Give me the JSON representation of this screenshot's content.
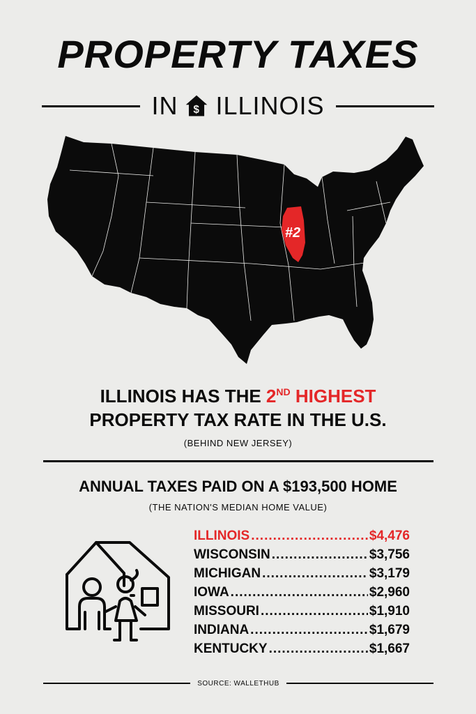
{
  "title": "PROPERTY TAXES",
  "subtitle": {
    "prefix": "IN",
    "icon": "house-dollar-icon",
    "state": "ILLINOIS"
  },
  "map": {
    "highlight_label": "#2",
    "highlight_color": "#e42728",
    "land_color": "#0b0b0b"
  },
  "headline": {
    "line1_start": "ILLINOIS HAS THE ",
    "rank": "2",
    "rank_suffix": "ND",
    "rank_word": " HIGHEST",
    "line2": "PROPERTY TAX RATE IN THE U.S."
  },
  "behind_note": "(BEHIND NEW JERSEY)",
  "annual": {
    "heading": "ANNUAL TAXES PAID ON A $193,500 HOME",
    "subheading": "(THE NATION'S MEDIAN HOME VALUE)"
  },
  "taxes": [
    {
      "state": "ILLINOIS",
      "amount": "$4,476"
    },
    {
      "state": "WISCONSIN",
      "amount": "$3,756"
    },
    {
      "state": "MICHIGAN",
      "amount": "$3,179"
    },
    {
      "state": "IOWA",
      "amount": "$2,960"
    },
    {
      "state": "MISSOURI",
      "amount": "$1,910"
    },
    {
      "state": "INDIANA",
      "amount": "$1,679"
    },
    {
      "state": "KENTUCKY",
      "amount": "$1,667"
    }
  ],
  "source": "SOURCE: WALLETHUB",
  "colors": {
    "accent": "#e42728",
    "ink": "#0b0b0b",
    "background": "#ececea"
  }
}
